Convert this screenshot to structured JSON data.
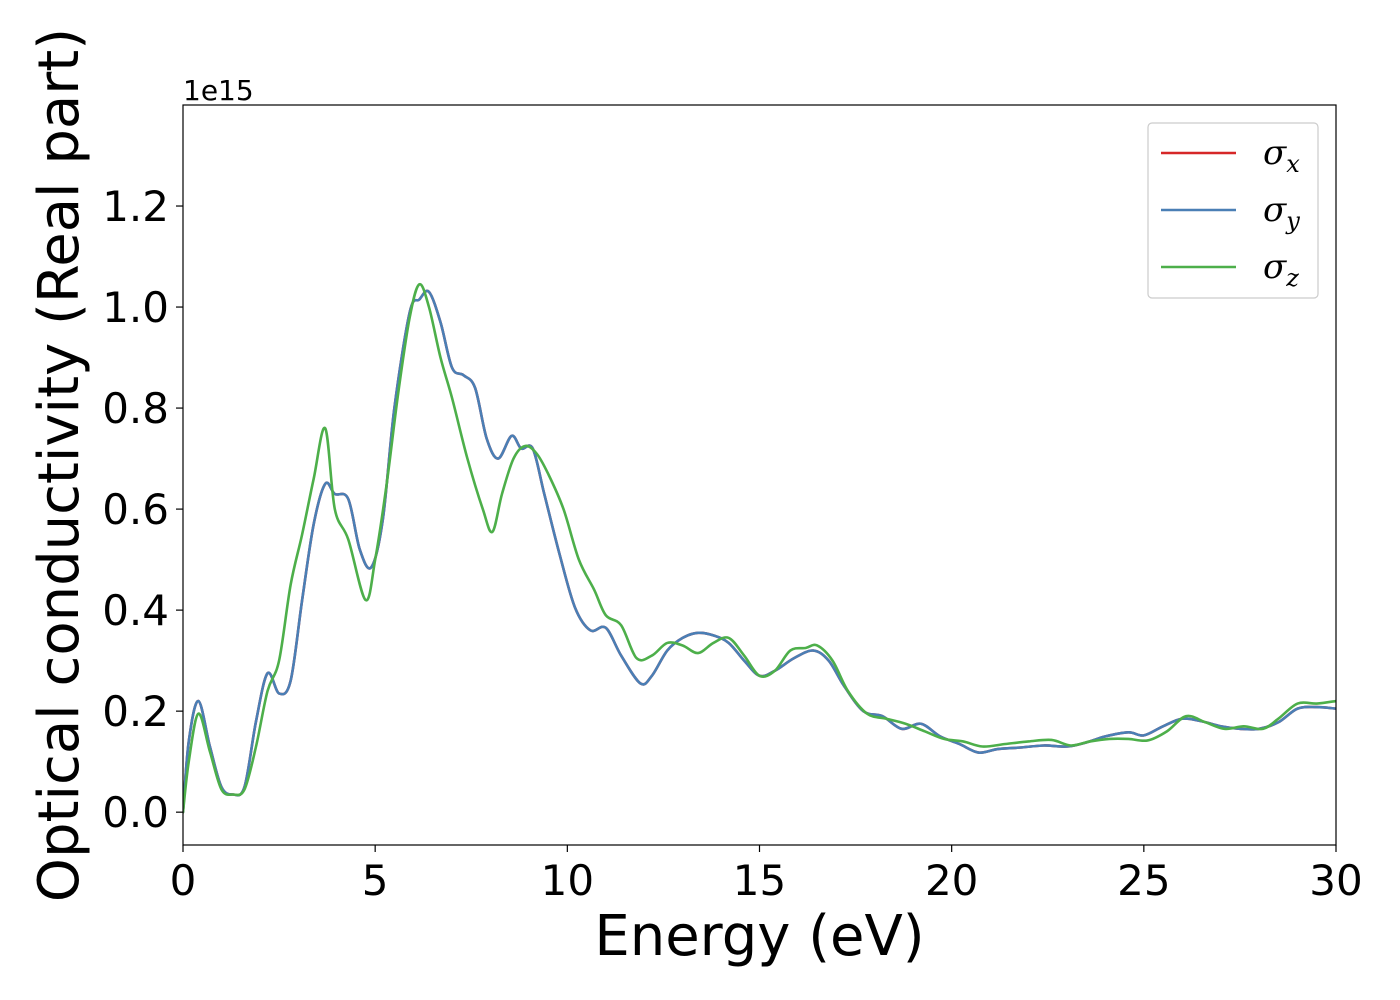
{
  "chart_data": {
    "type": "line",
    "xlabel": "Energy (eV)",
    "ylabel": "Optical conductivity (Real part)",
    "y_offset_label": "1e15",
    "xlim": [
      0,
      30
    ],
    "ylim": [
      -0.065,
      1.4
    ],
    "x_ticks": [
      0,
      5,
      10,
      15,
      20,
      25,
      30
    ],
    "x_tick_labels": [
      "0",
      "5",
      "10",
      "15",
      "20",
      "25",
      "30"
    ],
    "y_ticks": [
      0.0,
      0.2,
      0.4,
      0.6,
      0.8,
      1.0,
      1.2
    ],
    "y_tick_labels": [
      "0.0",
      "0.2",
      "0.4",
      "0.6",
      "0.8",
      "1.0",
      "1.2"
    ],
    "grid": false,
    "legend_position": "top-right",
    "series": [
      {
        "name": "σ_x",
        "label_base": "σ",
        "label_sub": "x",
        "color": "#d62728",
        "points": [
          [
            0,
            0
          ],
          [
            0.15,
            0.14
          ],
          [
            0.4,
            0.22
          ],
          [
            0.7,
            0.13
          ],
          [
            1.0,
            0.05
          ],
          [
            1.3,
            0.035
          ],
          [
            1.6,
            0.05
          ],
          [
            1.9,
            0.18
          ],
          [
            2.2,
            0.275
          ],
          [
            2.5,
            0.235
          ],
          [
            2.8,
            0.26
          ],
          [
            3.1,
            0.42
          ],
          [
            3.4,
            0.57
          ],
          [
            3.7,
            0.65
          ],
          [
            3.95,
            0.63
          ],
          [
            4.3,
            0.62
          ],
          [
            4.6,
            0.52
          ],
          [
            4.9,
            0.485
          ],
          [
            5.2,
            0.58
          ],
          [
            5.5,
            0.8
          ],
          [
            5.9,
            0.99
          ],
          [
            6.15,
            1.015
          ],
          [
            6.4,
            1.03
          ],
          [
            6.7,
            0.97
          ],
          [
            7.0,
            0.88
          ],
          [
            7.3,
            0.865
          ],
          [
            7.6,
            0.84
          ],
          [
            7.9,
            0.74
          ],
          [
            8.2,
            0.7
          ],
          [
            8.55,
            0.745
          ],
          [
            8.8,
            0.72
          ],
          [
            9.1,
            0.72
          ],
          [
            9.4,
            0.63
          ],
          [
            9.8,
            0.51
          ],
          [
            10.2,
            0.405
          ],
          [
            10.6,
            0.36
          ],
          [
            11.0,
            0.365
          ],
          [
            11.4,
            0.31
          ],
          [
            11.9,
            0.255
          ],
          [
            12.2,
            0.27
          ],
          [
            12.6,
            0.32
          ],
          [
            13.0,
            0.345
          ],
          [
            13.4,
            0.355
          ],
          [
            13.8,
            0.35
          ],
          [
            14.2,
            0.335
          ],
          [
            14.6,
            0.3
          ],
          [
            15.0,
            0.27
          ],
          [
            15.4,
            0.28
          ],
          [
            15.9,
            0.305
          ],
          [
            16.4,
            0.32
          ],
          [
            16.8,
            0.3
          ],
          [
            17.2,
            0.25
          ],
          [
            17.7,
            0.2
          ],
          [
            18.2,
            0.19
          ],
          [
            18.7,
            0.165
          ],
          [
            19.2,
            0.175
          ],
          [
            19.7,
            0.15
          ],
          [
            20.2,
            0.135
          ],
          [
            20.7,
            0.118
          ],
          [
            21.2,
            0.125
          ],
          [
            21.8,
            0.128
          ],
          [
            22.4,
            0.132
          ],
          [
            23.0,
            0.13
          ],
          [
            23.5,
            0.138
          ],
          [
            24.0,
            0.15
          ],
          [
            24.6,
            0.158
          ],
          [
            25.0,
            0.152
          ],
          [
            25.5,
            0.17
          ],
          [
            26.0,
            0.185
          ],
          [
            26.5,
            0.18
          ],
          [
            27.0,
            0.17
          ],
          [
            27.5,
            0.165
          ],
          [
            28.0,
            0.165
          ],
          [
            28.5,
            0.178
          ],
          [
            29.0,
            0.205
          ],
          [
            29.5,
            0.208
          ],
          [
            30.0,
            0.205
          ]
        ]
      },
      {
        "name": "σ_y",
        "label_base": "σ",
        "label_sub": "y",
        "color": "#4a7fb5",
        "points": [
          [
            0,
            0
          ],
          [
            0.15,
            0.14
          ],
          [
            0.4,
            0.22
          ],
          [
            0.7,
            0.13
          ],
          [
            1.0,
            0.05
          ],
          [
            1.3,
            0.035
          ],
          [
            1.6,
            0.05
          ],
          [
            1.9,
            0.18
          ],
          [
            2.2,
            0.275
          ],
          [
            2.5,
            0.235
          ],
          [
            2.8,
            0.26
          ],
          [
            3.1,
            0.42
          ],
          [
            3.4,
            0.57
          ],
          [
            3.7,
            0.65
          ],
          [
            3.95,
            0.63
          ],
          [
            4.3,
            0.62
          ],
          [
            4.6,
            0.52
          ],
          [
            4.9,
            0.485
          ],
          [
            5.2,
            0.58
          ],
          [
            5.5,
            0.8
          ],
          [
            5.9,
            0.99
          ],
          [
            6.15,
            1.015
          ],
          [
            6.4,
            1.03
          ],
          [
            6.7,
            0.97
          ],
          [
            7.0,
            0.88
          ],
          [
            7.3,
            0.865
          ],
          [
            7.6,
            0.84
          ],
          [
            7.9,
            0.74
          ],
          [
            8.2,
            0.7
          ],
          [
            8.55,
            0.745
          ],
          [
            8.8,
            0.72
          ],
          [
            9.1,
            0.72
          ],
          [
            9.4,
            0.63
          ],
          [
            9.8,
            0.51
          ],
          [
            10.2,
            0.405
          ],
          [
            10.6,
            0.36
          ],
          [
            11.0,
            0.365
          ],
          [
            11.4,
            0.31
          ],
          [
            11.9,
            0.255
          ],
          [
            12.2,
            0.27
          ],
          [
            12.6,
            0.32
          ],
          [
            13.0,
            0.345
          ],
          [
            13.4,
            0.355
          ],
          [
            13.8,
            0.35
          ],
          [
            14.2,
            0.335
          ],
          [
            14.6,
            0.3
          ],
          [
            15.0,
            0.27
          ],
          [
            15.4,
            0.28
          ],
          [
            15.9,
            0.305
          ],
          [
            16.4,
            0.32
          ],
          [
            16.8,
            0.3
          ],
          [
            17.2,
            0.25
          ],
          [
            17.7,
            0.2
          ],
          [
            18.2,
            0.19
          ],
          [
            18.7,
            0.165
          ],
          [
            19.2,
            0.175
          ],
          [
            19.7,
            0.15
          ],
          [
            20.2,
            0.135
          ],
          [
            20.7,
            0.118
          ],
          [
            21.2,
            0.125
          ],
          [
            21.8,
            0.128
          ],
          [
            22.4,
            0.132
          ],
          [
            23.0,
            0.13
          ],
          [
            23.5,
            0.138
          ],
          [
            24.0,
            0.15
          ],
          [
            24.6,
            0.158
          ],
          [
            25.0,
            0.152
          ],
          [
            25.5,
            0.17
          ],
          [
            26.0,
            0.185
          ],
          [
            26.5,
            0.18
          ],
          [
            27.0,
            0.17
          ],
          [
            27.5,
            0.165
          ],
          [
            28.0,
            0.165
          ],
          [
            28.5,
            0.178
          ],
          [
            29.0,
            0.205
          ],
          [
            29.5,
            0.208
          ],
          [
            30.0,
            0.205
          ]
        ]
      },
      {
        "name": "σ_z",
        "label_base": "σ",
        "label_sub": "z",
        "color": "#4daf4a",
        "points": [
          [
            0,
            0
          ],
          [
            0.15,
            0.1
          ],
          [
            0.4,
            0.195
          ],
          [
            0.7,
            0.12
          ],
          [
            1.0,
            0.045
          ],
          [
            1.3,
            0.035
          ],
          [
            1.6,
            0.045
          ],
          [
            1.9,
            0.13
          ],
          [
            2.2,
            0.24
          ],
          [
            2.5,
            0.3
          ],
          [
            2.8,
            0.45
          ],
          [
            3.1,
            0.55
          ],
          [
            3.4,
            0.66
          ],
          [
            3.7,
            0.76
          ],
          [
            3.95,
            0.6
          ],
          [
            4.3,
            0.54
          ],
          [
            4.75,
            0.42
          ],
          [
            5.0,
            0.5
          ],
          [
            5.3,
            0.65
          ],
          [
            5.6,
            0.83
          ],
          [
            5.9,
            0.98
          ],
          [
            6.15,
            1.045
          ],
          [
            6.4,
            1.0
          ],
          [
            6.7,
            0.9
          ],
          [
            7.0,
            0.82
          ],
          [
            7.4,
            0.7
          ],
          [
            7.8,
            0.6
          ],
          [
            8.05,
            0.555
          ],
          [
            8.3,
            0.63
          ],
          [
            8.6,
            0.7
          ],
          [
            8.9,
            0.725
          ],
          [
            9.2,
            0.71
          ],
          [
            9.5,
            0.67
          ],
          [
            9.9,
            0.6
          ],
          [
            10.3,
            0.5
          ],
          [
            10.7,
            0.44
          ],
          [
            11.0,
            0.39
          ],
          [
            11.4,
            0.37
          ],
          [
            11.8,
            0.305
          ],
          [
            12.2,
            0.31
          ],
          [
            12.6,
            0.335
          ],
          [
            13.0,
            0.33
          ],
          [
            13.4,
            0.315
          ],
          [
            13.8,
            0.335
          ],
          [
            14.2,
            0.345
          ],
          [
            14.6,
            0.31
          ],
          [
            15.0,
            0.27
          ],
          [
            15.4,
            0.28
          ],
          [
            15.8,
            0.32
          ],
          [
            16.2,
            0.325
          ],
          [
            16.5,
            0.33
          ],
          [
            16.9,
            0.3
          ],
          [
            17.3,
            0.24
          ],
          [
            17.8,
            0.195
          ],
          [
            18.3,
            0.185
          ],
          [
            18.8,
            0.175
          ],
          [
            19.3,
            0.16
          ],
          [
            19.8,
            0.145
          ],
          [
            20.3,
            0.14
          ],
          [
            20.8,
            0.13
          ],
          [
            21.4,
            0.135
          ],
          [
            22.0,
            0.14
          ],
          [
            22.6,
            0.143
          ],
          [
            23.1,
            0.132
          ],
          [
            23.6,
            0.14
          ],
          [
            24.1,
            0.145
          ],
          [
            24.6,
            0.145
          ],
          [
            25.1,
            0.142
          ],
          [
            25.6,
            0.16
          ],
          [
            26.1,
            0.19
          ],
          [
            26.6,
            0.178
          ],
          [
            27.1,
            0.165
          ],
          [
            27.6,
            0.17
          ],
          [
            28.1,
            0.165
          ],
          [
            28.5,
            0.185
          ],
          [
            29.0,
            0.215
          ],
          [
            29.5,
            0.215
          ],
          [
            30.0,
            0.22
          ]
        ]
      }
    ]
  }
}
